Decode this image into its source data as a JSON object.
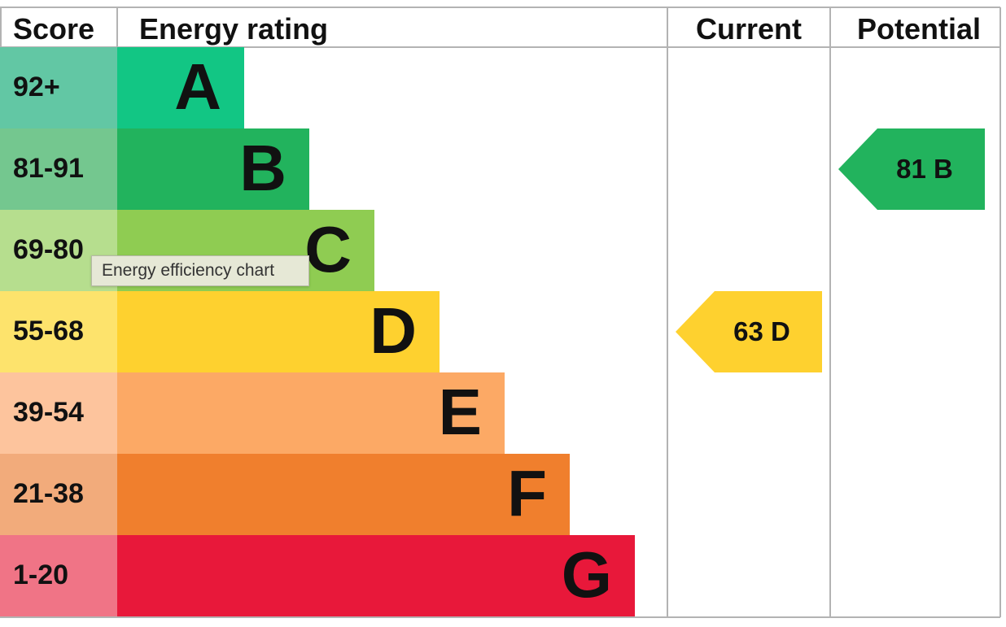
{
  "headers": {
    "score": "Score",
    "energy_rating": "Energy rating",
    "current": "Current",
    "potential": "Potential"
  },
  "tooltip": "Energy efficiency chart",
  "chart_data": {
    "type": "bar",
    "bands": [
      {
        "score": "92+",
        "letter": "A",
        "color": "#12c684",
        "score_color": "#62c7a4"
      },
      {
        "score": "81-91",
        "letter": "B",
        "color": "#22b35d",
        "score_color": "#74c78f"
      },
      {
        "score": "69-80",
        "letter": "C",
        "color": "#8fcc52",
        "score_color": "#b6de8e"
      },
      {
        "score": "55-68",
        "letter": "D",
        "color": "#fed12f",
        "score_color": "#fde36c"
      },
      {
        "score": "39-54",
        "letter": "E",
        "color": "#fca965",
        "score_color": "#fdc49d"
      },
      {
        "score": "21-38",
        "letter": "F",
        "color": "#f07f2d",
        "score_color": "#f2ab7b"
      },
      {
        "score": "1-20",
        "letter": "G",
        "color": "#e8183a",
        "score_color": "#f07486"
      }
    ],
    "current": {
      "value": 63,
      "letter": "D",
      "color": "#fed12f"
    },
    "potential": {
      "value": 81,
      "letter": "B",
      "color": "#22b35d"
    }
  }
}
